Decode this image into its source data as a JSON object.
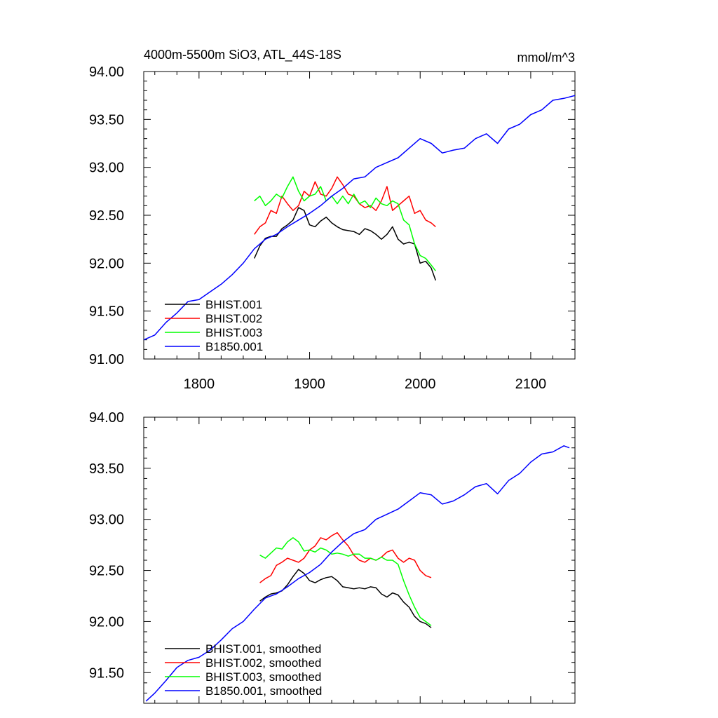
{
  "chart_data": [
    {
      "type": "line",
      "title": "4000m-5500m SiO3, ATL_44S-18S",
      "units": "mmol/m^3",
      "xlim": [
        1750,
        2140
      ],
      "ylim": [
        91.0,
        94.0
      ],
      "x_ticks": [
        1800,
        1900,
        2000,
        2100
      ],
      "y_ticks": [
        91.0,
        91.5,
        92.0,
        92.5,
        93.0,
        93.5,
        94.0
      ],
      "y_tick_labels": [
        "91.00",
        "91.50",
        "92.00",
        "92.50",
        "93.00",
        "93.50",
        "94.00"
      ],
      "show_x_tick_labels": true,
      "legend_position": "bottom-left",
      "series": [
        {
          "name": "BHIST.001",
          "color": "#000000",
          "x": [
            1850,
            1855,
            1860,
            1865,
            1870,
            1875,
            1880,
            1885,
            1890,
            1895,
            1900,
            1905,
            1910,
            1915,
            1920,
            1925,
            1930,
            1935,
            1940,
            1945,
            1950,
            1955,
            1960,
            1965,
            1970,
            1975,
            1980,
            1985,
            1990,
            1995,
            2000,
            2005,
            2010,
            2014
          ],
          "y": [
            92.05,
            92.18,
            92.26,
            92.28,
            92.28,
            92.36,
            92.4,
            92.45,
            92.58,
            92.55,
            92.4,
            92.38,
            92.44,
            92.48,
            92.42,
            92.38,
            92.35,
            92.34,
            92.33,
            92.3,
            92.36,
            92.34,
            92.3,
            92.25,
            92.3,
            92.38,
            92.25,
            92.2,
            92.22,
            92.2,
            92.0,
            92.02,
            91.95,
            91.82
          ]
        },
        {
          "name": "BHIST.002",
          "color": "#ff0000",
          "x": [
            1850,
            1855,
            1860,
            1865,
            1870,
            1875,
            1880,
            1885,
            1890,
            1895,
            1900,
            1905,
            1910,
            1915,
            1920,
            1925,
            1930,
            1935,
            1940,
            1945,
            1950,
            1955,
            1960,
            1965,
            1970,
            1975,
            1980,
            1985,
            1990,
            1995,
            2000,
            2005,
            2010,
            2014
          ],
          "y": [
            92.3,
            92.38,
            92.42,
            92.55,
            92.52,
            92.7,
            92.62,
            92.55,
            92.6,
            92.75,
            92.7,
            92.85,
            92.72,
            92.7,
            92.78,
            92.9,
            92.82,
            92.72,
            92.7,
            92.62,
            92.58,
            92.6,
            92.55,
            92.65,
            92.8,
            92.55,
            92.6,
            92.65,
            92.7,
            92.52,
            92.55,
            92.45,
            92.42,
            92.38
          ]
        },
        {
          "name": "BHIST.003",
          "color": "#00ff00",
          "x": [
            1850,
            1855,
            1860,
            1865,
            1870,
            1875,
            1880,
            1885,
            1890,
            1895,
            1900,
            1905,
            1910,
            1915,
            1920,
            1925,
            1930,
            1935,
            1940,
            1945,
            1950,
            1955,
            1960,
            1965,
            1970,
            1975,
            1980,
            1985,
            1990,
            1995,
            2000,
            2005,
            2010,
            2014
          ],
          "y": [
            92.65,
            92.7,
            92.6,
            92.65,
            92.72,
            92.68,
            92.8,
            92.9,
            92.75,
            92.65,
            92.7,
            92.72,
            92.8,
            92.65,
            92.7,
            92.62,
            92.7,
            92.62,
            92.72,
            92.62,
            92.65,
            92.58,
            92.68,
            92.62,
            92.6,
            92.65,
            92.62,
            92.45,
            92.4,
            92.2,
            92.08,
            92.05,
            91.98,
            91.92
          ]
        },
        {
          "name": "B1850.001",
          "color": "#0000ff",
          "x": [
            1750,
            1760,
            1770,
            1780,
            1790,
            1800,
            1810,
            1820,
            1830,
            1840,
            1850,
            1860,
            1870,
            1880,
            1890,
            1900,
            1910,
            1920,
            1930,
            1940,
            1950,
            1960,
            1970,
            1980,
            1990,
            2000,
            2010,
            2020,
            2030,
            2040,
            2050,
            2060,
            2070,
            2080,
            2090,
            2100,
            2110,
            2120,
            2130,
            2140
          ],
          "y": [
            91.2,
            91.25,
            91.38,
            91.48,
            91.6,
            91.62,
            91.7,
            91.78,
            91.88,
            92.0,
            92.15,
            92.25,
            92.3,
            92.38,
            92.45,
            92.52,
            92.6,
            92.7,
            92.78,
            92.88,
            92.9,
            93.0,
            93.05,
            93.1,
            93.2,
            93.3,
            93.25,
            93.15,
            93.18,
            93.2,
            93.3,
            93.35,
            93.25,
            93.4,
            93.45,
            93.55,
            93.6,
            93.7,
            93.72,
            93.75
          ]
        }
      ]
    },
    {
      "type": "line",
      "title": "",
      "units": "",
      "xlim": [
        1750,
        2140
      ],
      "ylim": [
        91.2,
        94.0
      ],
      "x_ticks": [
        1800,
        1900,
        2000,
        2100
      ],
      "y_ticks": [
        91.5,
        92.0,
        92.5,
        93.0,
        93.5,
        94.0
      ],
      "y_tick_labels": [
        "91.50",
        "92.00",
        "92.50",
        "93.00",
        "93.50",
        "94.00"
      ],
      "show_x_tick_labels": false,
      "legend_position": "bottom-left",
      "series": [
        {
          "name": "BHIST.001, smoothed",
          "color": "#000000",
          "x": [
            1855,
            1860,
            1865,
            1870,
            1875,
            1880,
            1885,
            1890,
            1895,
            1900,
            1905,
            1910,
            1915,
            1920,
            1925,
            1930,
            1935,
            1940,
            1945,
            1950,
            1955,
            1960,
            1965,
            1970,
            1975,
            1980,
            1985,
            1990,
            1995,
            2000,
            2005,
            2010
          ],
          "y": [
            92.2,
            92.24,
            92.27,
            92.28,
            92.3,
            92.36,
            92.44,
            92.51,
            92.47,
            92.4,
            92.38,
            92.41,
            92.43,
            92.44,
            92.4,
            92.34,
            92.33,
            92.32,
            92.33,
            92.32,
            92.34,
            92.33,
            92.27,
            92.24,
            92.28,
            92.26,
            92.19,
            92.14,
            92.05,
            92.0,
            91.98,
            91.94
          ]
        },
        {
          "name": "BHIST.002, smoothed",
          "color": "#ff0000",
          "x": [
            1855,
            1860,
            1865,
            1870,
            1875,
            1880,
            1885,
            1890,
            1895,
            1900,
            1905,
            1910,
            1915,
            1920,
            1925,
            1930,
            1935,
            1940,
            1945,
            1950,
            1955,
            1960,
            1965,
            1970,
            1975,
            1980,
            1985,
            1990,
            1995,
            2000,
            2005,
            2010
          ],
          "y": [
            92.38,
            92.42,
            92.45,
            92.55,
            92.58,
            92.62,
            92.6,
            92.58,
            92.62,
            92.7,
            92.74,
            92.82,
            92.8,
            92.84,
            92.87,
            92.8,
            92.74,
            92.65,
            92.6,
            92.58,
            92.62,
            92.6,
            92.63,
            92.68,
            92.7,
            92.62,
            92.58,
            92.62,
            92.6,
            92.5,
            92.45,
            92.43
          ]
        },
        {
          "name": "BHIST.003, smoothed",
          "color": "#00ff00",
          "x": [
            1855,
            1860,
            1865,
            1870,
            1875,
            1880,
            1885,
            1890,
            1895,
            1900,
            1905,
            1910,
            1915,
            1920,
            1925,
            1930,
            1935,
            1940,
            1945,
            1950,
            1955,
            1960,
            1965,
            1970,
            1975,
            1980,
            1985,
            1990,
            1995,
            2000,
            2005,
            2010
          ],
          "y": [
            92.65,
            92.62,
            92.67,
            92.72,
            92.71,
            92.78,
            92.82,
            92.78,
            92.69,
            92.7,
            92.68,
            92.72,
            92.7,
            92.66,
            92.67,
            92.66,
            92.64,
            92.66,
            92.66,
            92.62,
            92.62,
            92.6,
            92.63,
            92.6,
            92.6,
            92.56,
            92.4,
            92.26,
            92.14,
            92.04,
            92.0,
            91.96
          ]
        },
        {
          "name": "B1850.001, smoothed",
          "color": "#0000ff",
          "x": [
            1752,
            1760,
            1770,
            1780,
            1790,
            1800,
            1810,
            1820,
            1830,
            1840,
            1850,
            1860,
            1870,
            1880,
            1890,
            1900,
            1910,
            1920,
            1930,
            1940,
            1950,
            1960,
            1970,
            1980,
            1990,
            2000,
            2010,
            2020,
            2030,
            2040,
            2050,
            2060,
            2070,
            2080,
            2090,
            2100,
            2110,
            2120,
            2130,
            2135
          ],
          "y": [
            91.22,
            91.3,
            91.42,
            91.55,
            91.62,
            91.65,
            91.72,
            91.82,
            91.93,
            92.0,
            92.12,
            92.23,
            92.27,
            92.34,
            92.42,
            92.48,
            92.56,
            92.68,
            92.78,
            92.86,
            92.9,
            93.0,
            93.05,
            93.1,
            93.18,
            93.26,
            93.24,
            93.15,
            93.18,
            93.24,
            93.32,
            93.35,
            93.25,
            93.38,
            93.45,
            93.56,
            93.64,
            93.66,
            93.72,
            93.7
          ]
        }
      ]
    }
  ]
}
